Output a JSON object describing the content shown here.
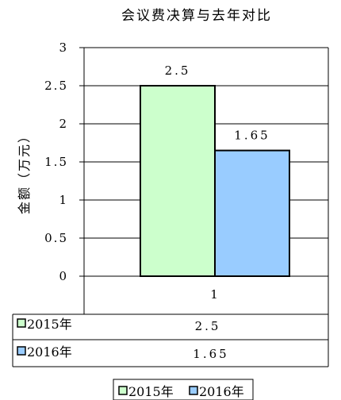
{
  "chart_data": {
    "type": "bar",
    "title": "会议费决算与去年对比",
    "ylabel": "金额（万元）",
    "xlabel": "",
    "categories": [
      "1"
    ],
    "ylim": [
      0,
      3
    ],
    "yticks": [
      "0",
      "0.5",
      "1",
      "1.5",
      "2",
      "2.5",
      "3"
    ],
    "series": [
      {
        "name": "2015年",
        "values": [
          2.5
        ],
        "label": "2.5",
        "color": "#ccffcc"
      },
      {
        "name": "2016年",
        "values": [
          1.65
        ],
        "label": "1.65",
        "color": "#99ccff"
      }
    ],
    "grid": true,
    "legend": "bottom",
    "data_table": true
  }
}
